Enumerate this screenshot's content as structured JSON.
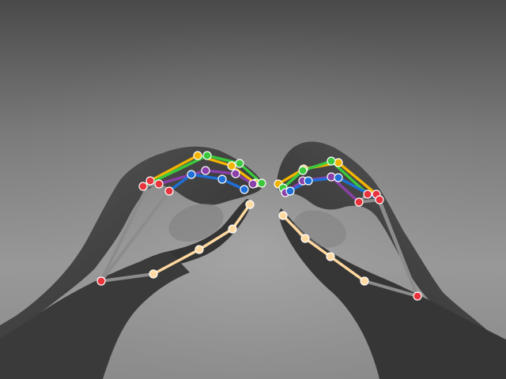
{
  "image": {
    "kind": "grayscale photo of two hands forming heart gesture with hand-landmark overlay",
    "hands": [
      "left-hand",
      "right-hand"
    ]
  },
  "overlay": {
    "skeleton_colors": {
      "palm": "#8c8c8c",
      "thumb": "#ffd9a0",
      "index": "#f2b400",
      "middle": "#3cc83c",
      "ring": "#8b3fa8",
      "pinky": "#1e6fd6"
    },
    "keypoint_colors": {
      "wrist": "#e8323c",
      "mcp": "#e8323c",
      "thumb": "#ffd9a0",
      "index": "#f2b400",
      "middle": "#3cc83c",
      "ring": "#8b3fa8",
      "pinky": "#1e6fd6"
    },
    "keypoint_outline": "#ffffff"
  }
}
